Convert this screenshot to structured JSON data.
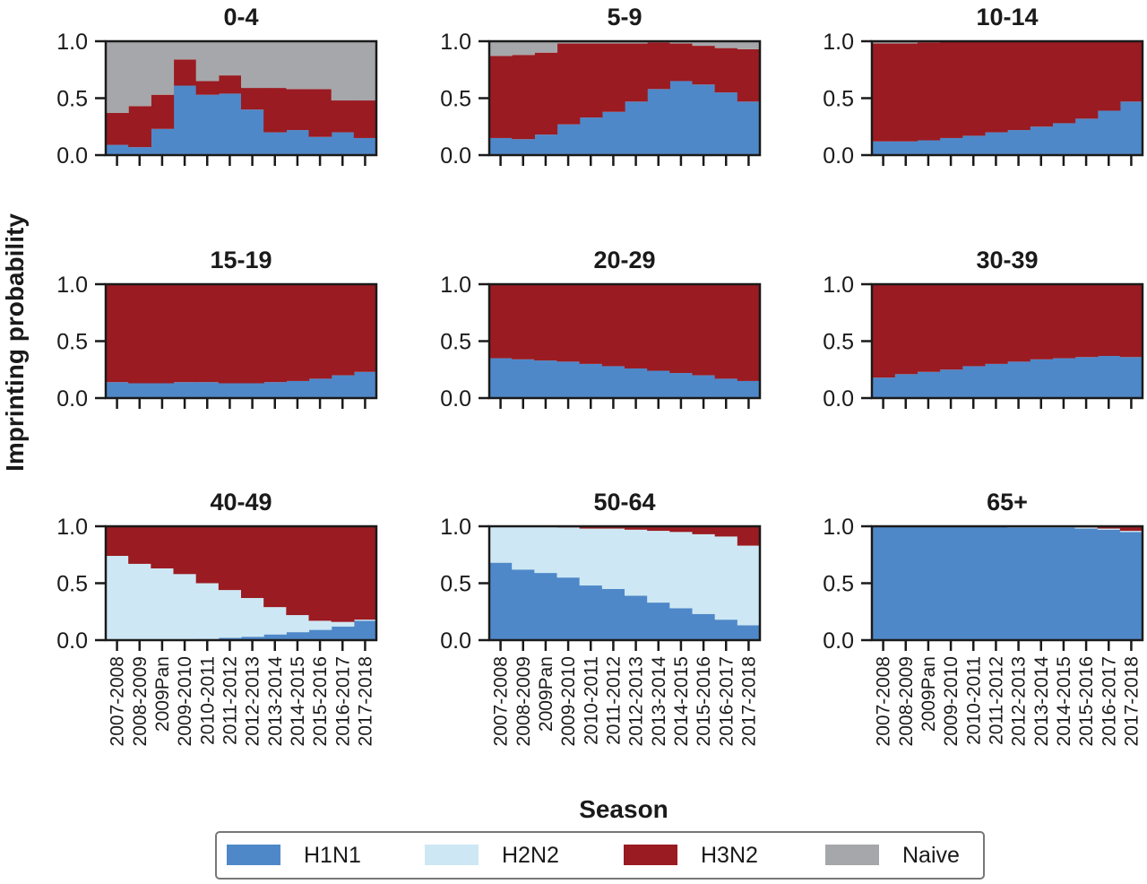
{
  "chart_data": {
    "type": "area",
    "ylabel": "Imprinting probability",
    "xlabel": "Season",
    "ylim": [
      0,
      1
    ],
    "yticks": [
      "0.0",
      "0.5",
      "1.0"
    ],
    "categories": [
      "2007-2008",
      "2008-2009",
      "2009Pan",
      "2009-2010",
      "2010-2011",
      "2011-2012",
      "2012-2013",
      "2013-2014",
      "2014-2015",
      "2015-2016",
      "2016-2017",
      "2017-2018"
    ],
    "legend": [
      {
        "name": "H1N1",
        "color": "#4f88c8"
      },
      {
        "name": "H2N2",
        "color": "#cde8f4"
      },
      {
        "name": "H3N2",
        "color": "#9a1b21"
      },
      {
        "name": "Naive",
        "color": "#a6a7aa"
      }
    ],
    "legend_placement": "bottom",
    "panels": [
      {
        "title": "0-4",
        "show_season_labels": false,
        "H1N1": [
          0.09,
          0.07,
          0.23,
          0.61,
          0.53,
          0.54,
          0.4,
          0.2,
          0.22,
          0.16,
          0.2,
          0.15
        ],
        "H2N2": [
          0,
          0,
          0,
          0,
          0,
          0,
          0,
          0,
          0,
          0,
          0,
          0
        ],
        "H3N2": [
          0.28,
          0.36,
          0.3,
          0.23,
          0.12,
          0.16,
          0.19,
          0.39,
          0.36,
          0.42,
          0.28,
          0.33
        ],
        "Naive": [
          0.63,
          0.57,
          0.47,
          0.16,
          0.35,
          0.3,
          0.41,
          0.41,
          0.42,
          0.42,
          0.52,
          0.52
        ]
      },
      {
        "title": "5-9",
        "show_season_labels": false,
        "H1N1": [
          0.15,
          0.14,
          0.18,
          0.27,
          0.33,
          0.38,
          0.47,
          0.58,
          0.65,
          0.62,
          0.55,
          0.47
        ],
        "H2N2": [
          0,
          0,
          0,
          0,
          0,
          0,
          0,
          0,
          0,
          0,
          0,
          0
        ],
        "H3N2": [
          0.72,
          0.74,
          0.72,
          0.71,
          0.65,
          0.6,
          0.51,
          0.41,
          0.33,
          0.34,
          0.39,
          0.46
        ],
        "Naive": [
          0.13,
          0.12,
          0.1,
          0.02,
          0.02,
          0.02,
          0.02,
          0.01,
          0.02,
          0.04,
          0.06,
          0.07
        ]
      },
      {
        "title": "10-14",
        "show_season_labels": false,
        "H1N1": [
          0.12,
          0.12,
          0.13,
          0.15,
          0.17,
          0.2,
          0.22,
          0.25,
          0.28,
          0.32,
          0.39,
          0.47
        ],
        "H2N2": [
          0,
          0,
          0,
          0,
          0,
          0,
          0,
          0,
          0,
          0,
          0,
          0
        ],
        "H3N2": [
          0.86,
          0.86,
          0.86,
          0.85,
          0.83,
          0.8,
          0.78,
          0.75,
          0.72,
          0.68,
          0.61,
          0.53
        ],
        "Naive": [
          0.02,
          0.02,
          0.01,
          0,
          0,
          0,
          0,
          0,
          0,
          0,
          0,
          0
        ]
      },
      {
        "title": "15-19",
        "show_season_labels": false,
        "H1N1": [
          0.14,
          0.13,
          0.13,
          0.14,
          0.14,
          0.13,
          0.13,
          0.14,
          0.15,
          0.17,
          0.2,
          0.23
        ],
        "H2N2": [
          0,
          0,
          0,
          0,
          0,
          0,
          0,
          0,
          0,
          0,
          0,
          0
        ],
        "H3N2": [
          0.86,
          0.87,
          0.87,
          0.86,
          0.86,
          0.87,
          0.87,
          0.86,
          0.85,
          0.83,
          0.8,
          0.77
        ],
        "Naive": [
          0,
          0,
          0,
          0,
          0,
          0,
          0,
          0,
          0,
          0,
          0,
          0
        ]
      },
      {
        "title": "20-29",
        "show_season_labels": false,
        "H1N1": [
          0.35,
          0.34,
          0.33,
          0.32,
          0.3,
          0.28,
          0.26,
          0.24,
          0.22,
          0.2,
          0.17,
          0.15
        ],
        "H2N2": [
          0,
          0,
          0,
          0,
          0,
          0,
          0,
          0,
          0,
          0,
          0,
          0
        ],
        "H3N2": [
          0.65,
          0.66,
          0.67,
          0.68,
          0.7,
          0.72,
          0.74,
          0.76,
          0.78,
          0.8,
          0.83,
          0.85
        ],
        "Naive": [
          0,
          0,
          0,
          0,
          0,
          0,
          0,
          0,
          0,
          0,
          0,
          0
        ]
      },
      {
        "title": "30-39",
        "show_season_labels": false,
        "H1N1": [
          0.18,
          0.21,
          0.23,
          0.25,
          0.28,
          0.3,
          0.32,
          0.34,
          0.35,
          0.36,
          0.37,
          0.36
        ],
        "H2N2": [
          0,
          0,
          0,
          0,
          0,
          0,
          0,
          0,
          0,
          0,
          0,
          0
        ],
        "H3N2": [
          0.82,
          0.79,
          0.77,
          0.75,
          0.72,
          0.7,
          0.68,
          0.66,
          0.65,
          0.64,
          0.63,
          0.64
        ],
        "Naive": [
          0,
          0,
          0,
          0,
          0,
          0,
          0,
          0,
          0,
          0,
          0,
          0
        ]
      },
      {
        "title": "40-49",
        "show_season_labels": true,
        "H1N1": [
          0,
          0,
          0,
          0,
          0.01,
          0.02,
          0.03,
          0.05,
          0.07,
          0.09,
          0.12,
          0.17
        ],
        "H2N2": [
          0.74,
          0.67,
          0.63,
          0.58,
          0.49,
          0.42,
          0.34,
          0.24,
          0.15,
          0.08,
          0.04,
          0.01
        ],
        "H3N2": [
          0.26,
          0.33,
          0.37,
          0.42,
          0.5,
          0.56,
          0.63,
          0.71,
          0.78,
          0.83,
          0.84,
          0.82
        ],
        "Naive": [
          0,
          0,
          0,
          0,
          0,
          0,
          0,
          0,
          0,
          0,
          0,
          0
        ]
      },
      {
        "title": "50-64",
        "show_season_labels": true,
        "H1N1": [
          0.68,
          0.62,
          0.59,
          0.55,
          0.48,
          0.45,
          0.39,
          0.33,
          0.28,
          0.23,
          0.18,
          0.13
        ],
        "H2N2": [
          0.32,
          0.38,
          0.41,
          0.44,
          0.5,
          0.53,
          0.58,
          0.63,
          0.67,
          0.7,
          0.73,
          0.7
        ],
        "H3N2": [
          0,
          0,
          0,
          0.01,
          0.02,
          0.02,
          0.03,
          0.04,
          0.05,
          0.07,
          0.09,
          0.17
        ],
        "Naive": [
          0,
          0,
          0,
          0,
          0,
          0,
          0,
          0,
          0,
          0,
          0,
          0
        ]
      },
      {
        "title": "65+",
        "show_season_labels": true,
        "H1N1": [
          1.0,
          1.0,
          1.0,
          1.0,
          1.0,
          1.0,
          0.99,
          0.99,
          0.99,
          0.98,
          0.97,
          0.95
        ],
        "H2N2": [
          0,
          0,
          0,
          0,
          0,
          0,
          0.01,
          0.01,
          0.01,
          0.01,
          0.01,
          0.01
        ],
        "H3N2": [
          0,
          0,
          0,
          0,
          0,
          0,
          0,
          0,
          0,
          0.01,
          0.02,
          0.04
        ],
        "Naive": [
          0,
          0,
          0,
          0,
          0,
          0,
          0,
          0,
          0,
          0,
          0,
          0
        ]
      }
    ]
  }
}
